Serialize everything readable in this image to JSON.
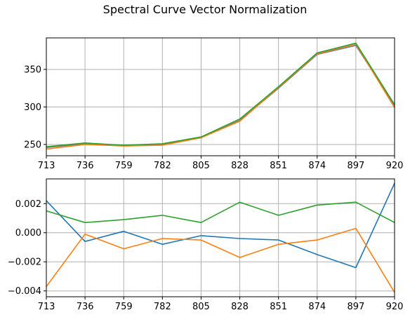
{
  "chart_data": [
    {
      "type": "line",
      "title": "Spectral Curve Vector Normalization",
      "xlabel": "",
      "ylabel": "",
      "x": [
        713,
        736,
        759,
        782,
        805,
        828,
        851,
        874,
        897,
        920
      ],
      "xlim": [
        713,
        920
      ],
      "ylim": [
        235,
        392
      ],
      "yticks": [
        250,
        300,
        350
      ],
      "grid": true,
      "series": [
        {
          "color": "#1f77b4",
          "values": [
            247,
            251,
            249,
            250,
            259,
            282,
            325,
            370,
            382,
            303
          ]
        },
        {
          "color": "#7f7f7f",
          "values": [
            246,
            251,
            249,
            250,
            259,
            282,
            325,
            370,
            382,
            302
          ]
        },
        {
          "color": "#ff7f0e",
          "values": [
            244,
            250,
            248,
            249,
            259,
            281,
            326,
            371,
            384,
            299
          ]
        },
        {
          "color": "#2ca02c",
          "values": [
            247,
            252,
            249,
            251,
            260,
            284,
            327,
            372,
            385,
            303
          ]
        }
      ]
    },
    {
      "type": "line",
      "title": "",
      "xlabel": "",
      "ylabel": "",
      "x": [
        713,
        736,
        759,
        782,
        805,
        828,
        851,
        874,
        897,
        920
      ],
      "xlim": [
        713,
        920
      ],
      "ylim": [
        -0.0044,
        0.0037
      ],
      "yticks": [
        "-0.004",
        "-0.002",
        "0.000",
        "0.002"
      ],
      "grid": true,
      "series": [
        {
          "color": "#1f77b4",
          "values": [
            0.0022,
            -0.0006,
            0.0001,
            -0.0008,
            -0.0002,
            -0.0004,
            -0.0005,
            -0.0015,
            -0.0024,
            0.0034
          ]
        },
        {
          "color": "#ff7f0e",
          "values": [
            -0.0037,
            -0.0001,
            -0.0011,
            -0.0004,
            -0.0005,
            -0.0017,
            -0.0008,
            -0.0005,
            0.0003,
            -0.0041
          ]
        },
        {
          "color": "#2ca02c",
          "values": [
            0.0015,
            0.0007,
            0.0009,
            0.0012,
            0.0007,
            0.0021,
            0.0012,
            0.0019,
            0.0021,
            0.0007
          ]
        }
      ]
    }
  ]
}
